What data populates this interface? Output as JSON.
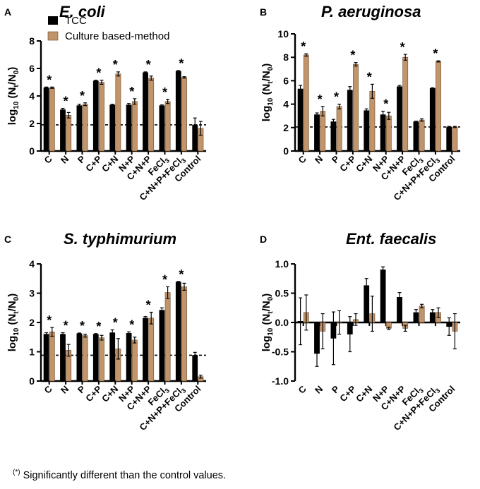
{
  "footnote": {
    "marker": "(*)",
    "text": "Significantly different than the control values."
  },
  "colors": {
    "tcc": "#000000",
    "culture": "#c1946a"
  },
  "legend": {
    "tcc": "TCC",
    "culture": "Culture based-method"
  },
  "chart_data": [
    {
      "panel": "A",
      "type": "bar",
      "title": "E. coli",
      "ylabel": "log10 (Nt/N0)",
      "ylim": [
        0,
        8
      ],
      "yticks": [
        0,
        2,
        4,
        6,
        8
      ],
      "ytick_labels": [
        "0",
        "2",
        "4",
        "6",
        "8"
      ],
      "control_line": 1.9,
      "categories": [
        "C",
        "N",
        "P",
        "C+P",
        "C+N",
        "N+P",
        "C+N+P",
        "FeCl3",
        "C+N+P+FeCl3",
        "Control"
      ],
      "series": [
        {
          "name": "TCC",
          "values": [
            4.6,
            3.0,
            3.3,
            5.1,
            3.35,
            3.35,
            5.7,
            3.3,
            5.8,
            1.9
          ],
          "errors": [
            0.05,
            0.1,
            0.1,
            0.05,
            0.05,
            0.1,
            0.05,
            0.05,
            0.05,
            0.5
          ]
        },
        {
          "name": "Culture based-method",
          "values": [
            4.6,
            2.6,
            3.4,
            5.0,
            5.6,
            3.6,
            5.3,
            3.6,
            5.35,
            1.65
          ],
          "errors": [
            0.05,
            0.2,
            0.1,
            0.15,
            0.15,
            0.2,
            0.15,
            0.15,
            0.05,
            0.5
          ]
        }
      ],
      "significant": [
        true,
        true,
        true,
        true,
        true,
        true,
        true,
        true,
        true,
        false
      ],
      "show_legend": true
    },
    {
      "panel": "B",
      "type": "bar",
      "title": "P. aeruginosa",
      "ylabel": "log10 (Nt/N0)",
      "ylim": [
        0,
        10
      ],
      "yticks": [
        0,
        2,
        4,
        6,
        8,
        10
      ],
      "ytick_labels": [
        "0",
        "2",
        "4",
        "6",
        "8",
        "10"
      ],
      "control_line": 2.05,
      "categories": [
        "C",
        "N",
        "P",
        "C+P",
        "C+N",
        "N+P",
        "C+N+P",
        "FeCl3",
        "C+N+P+FeCl3",
        "Control"
      ],
      "series": [
        {
          "name": "TCC",
          "values": [
            5.3,
            3.1,
            2.5,
            5.2,
            3.45,
            3.1,
            5.5,
            2.5,
            5.35,
            2.05
          ],
          "errors": [
            0.3,
            0.15,
            0.2,
            0.3,
            0.15,
            0.3,
            0.1,
            0.05,
            0.05,
            0.05
          ]
        },
        {
          "name": "Culture based-method",
          "values": [
            8.2,
            3.4,
            3.8,
            7.4,
            5.1,
            3.0,
            8.0,
            2.65,
            7.65,
            2.05
          ],
          "errors": [
            0.1,
            0.4,
            0.2,
            0.15,
            0.6,
            0.3,
            0.25,
            0.1,
            0.05,
            0.05
          ]
        }
      ],
      "significant": [
        true,
        true,
        true,
        true,
        true,
        true,
        true,
        false,
        true,
        false
      ],
      "show_legend": false
    },
    {
      "panel": "C",
      "type": "bar",
      "title": "S. typhimurium",
      "ylabel": "log10 (Nt/N0)",
      "ylim": [
        0,
        4
      ],
      "yticks": [
        0,
        1,
        2,
        3,
        4
      ],
      "ytick_labels": [
        "0",
        "1",
        "2",
        "3",
        "4"
      ],
      "control_line": 0.88,
      "categories": [
        "C",
        "N",
        "P",
        "C+P",
        "C+N",
        "N+P",
        "C+N+P",
        "FeCl3",
        "C+N+P+FeCl3",
        "Control"
      ],
      "series": [
        {
          "name": "TCC",
          "values": [
            1.6,
            1.6,
            1.62,
            1.6,
            1.65,
            1.63,
            2.15,
            2.42,
            3.38,
            0.88
          ],
          "errors": [
            0.05,
            0.05,
            0.02,
            0.02,
            0.1,
            0.05,
            0.05,
            0.08,
            0.02,
            0.1
          ]
        },
        {
          "name": "Culture based-method",
          "values": [
            1.68,
            1.05,
            1.55,
            1.48,
            1.1,
            1.4,
            2.15,
            3.02,
            3.22,
            0.15
          ],
          "errors": [
            0.15,
            0.2,
            0.05,
            0.08,
            0.35,
            0.1,
            0.2,
            0.2,
            0.12,
            0.05
          ]
        }
      ],
      "significant": [
        true,
        true,
        true,
        true,
        true,
        true,
        true,
        true,
        true,
        false
      ],
      "show_legend": false
    },
    {
      "panel": "D",
      "type": "bar",
      "title": "Ent. faecalis",
      "ylabel": "log10 (Nt/N0)",
      "ylim": [
        -1.0,
        1.0
      ],
      "yticks": [
        -1.0,
        -0.5,
        0.0,
        0.5,
        1.0
      ],
      "ytick_labels": [
        "-1.0",
        "-0.5",
        "0.0",
        "0.5",
        "1.0"
      ],
      "control_line": null,
      "categories": [
        "C",
        "N",
        "P",
        "C+P",
        "C+N",
        "N+P",
        "C+N+P",
        "FeCl3",
        "C+N+P+FeCl3",
        "Control"
      ],
      "series": [
        {
          "name": "TCC",
          "values": [
            0.02,
            -0.53,
            -0.27,
            -0.2,
            0.63,
            0.9,
            0.43,
            0.17,
            0.17,
            -0.07
          ],
          "errors": [
            0.4,
            0.22,
            0.45,
            0.3,
            0.12,
            0.05,
            0.08,
            0.05,
            0.05,
            0.15
          ]
        },
        {
          "name": "Culture based-method",
          "values": [
            0.17,
            -0.15,
            0.0,
            0.05,
            0.15,
            -0.1,
            -0.1,
            0.28,
            0.17,
            -0.15
          ],
          "errors": [
            0.3,
            0.3,
            0.2,
            0.1,
            0.3,
            0.02,
            0.05,
            0.03,
            0.08,
            0.3
          ]
        }
      ],
      "significant": [
        false,
        false,
        false,
        false,
        false,
        false,
        false,
        false,
        false,
        false
      ],
      "show_legend": false
    }
  ]
}
